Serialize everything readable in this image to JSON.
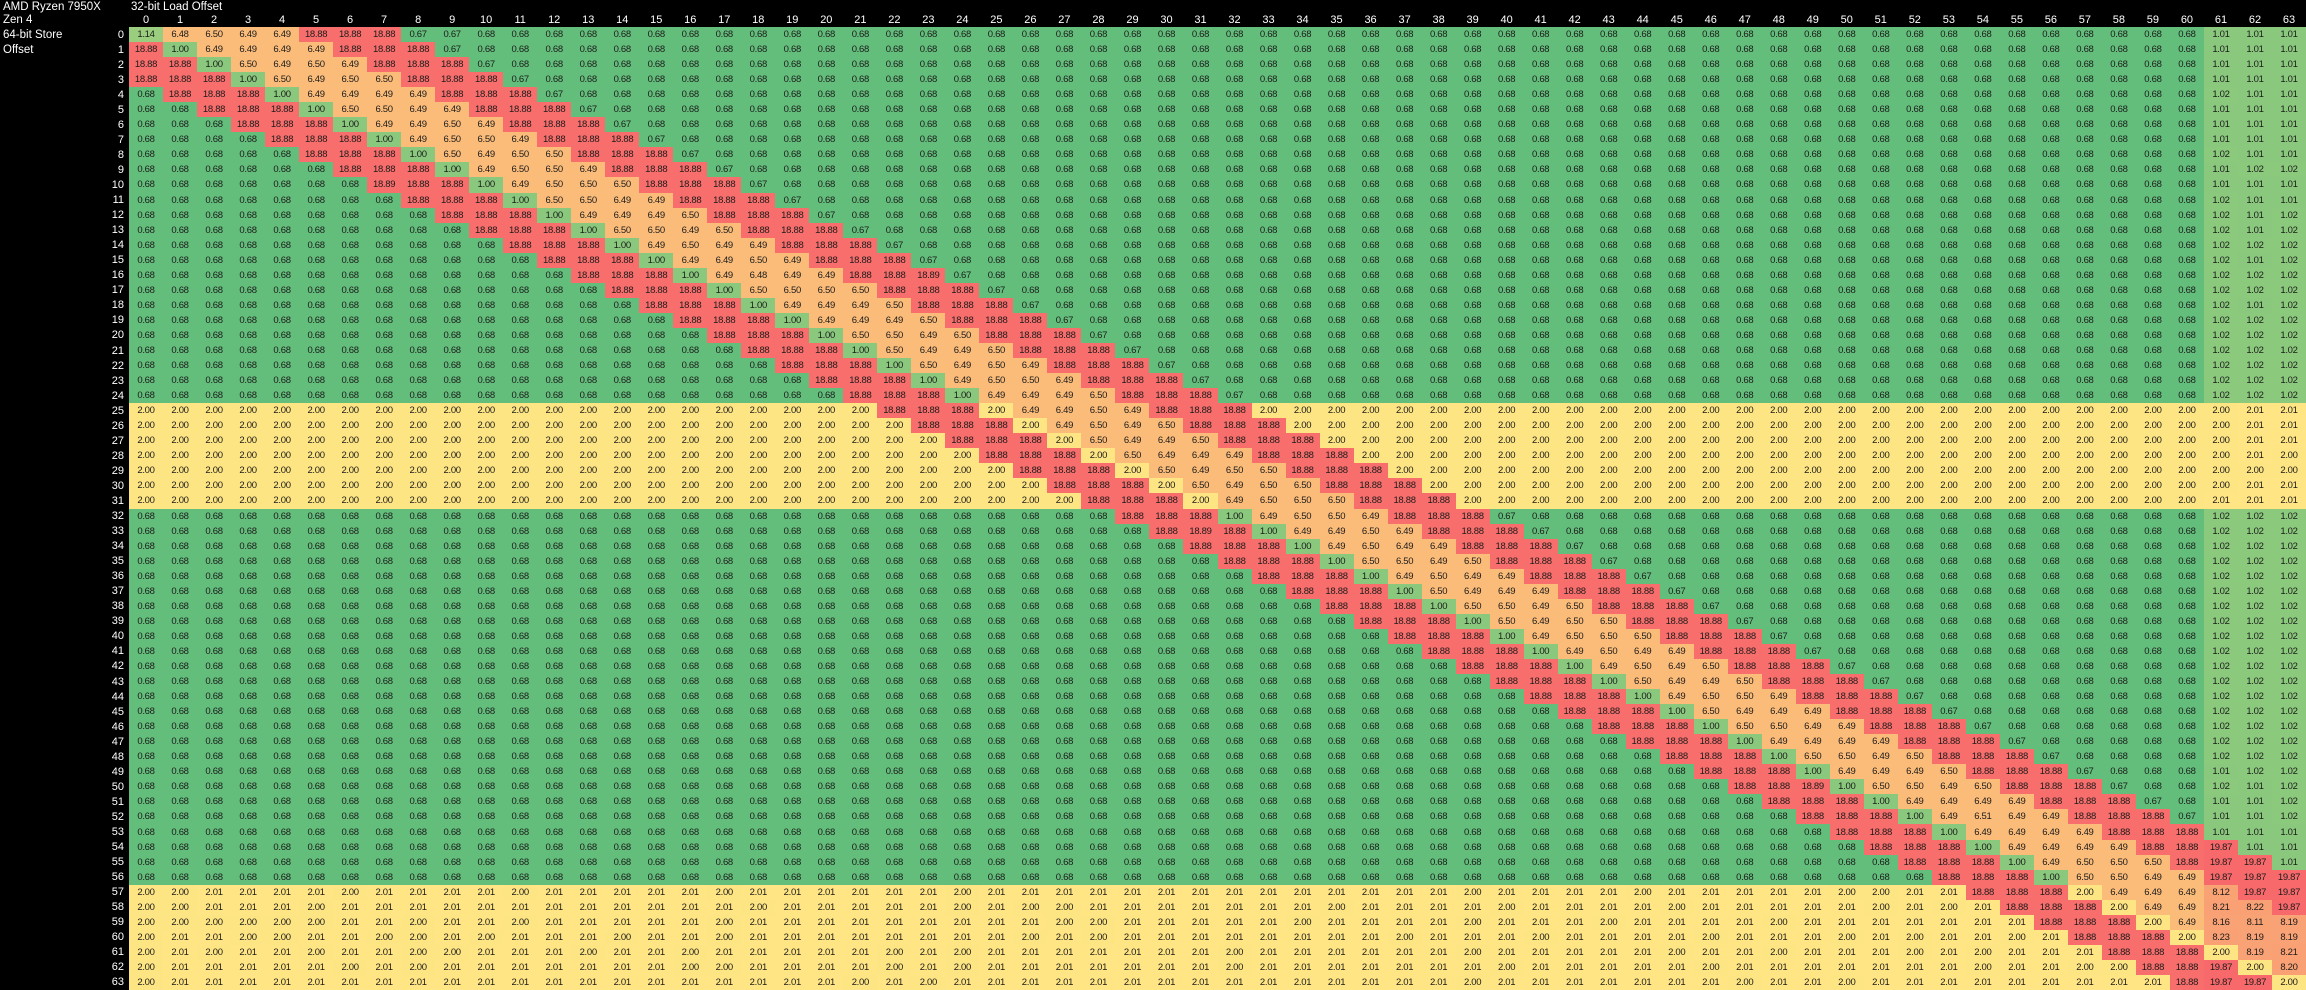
{
  "labels": {
    "cpu": "AMD Ryzen 7950X",
    "arch": "Zen 4",
    "row_axis_line1": "64-bit Store",
    "row_axis_line2": "Offset",
    "col_axis": "32-bit Load Offset"
  },
  "chart_data": {
    "type": "heatmap",
    "xlabel": "32-bit Load Offset",
    "ylabel": "64-bit Store Offset",
    "grid": false,
    "legend_position": "none",
    "page_background": "#000000",
    "header_text_color": "#ffffff",
    "cell_text_color": "#1b1b1b",
    "color_scale_anchors": [
      [
        0.67,
        "#63BE7B"
      ],
      [
        1.02,
        "#8BC97D"
      ],
      [
        1.14,
        "#9ACE7E"
      ],
      [
        2.01,
        "#FFE583"
      ],
      [
        6.51,
        "#FBBC7A"
      ],
      [
        8.23,
        "#F9A175"
      ],
      [
        19.87,
        "#F8696B"
      ]
    ],
    "col_headers": [
      0,
      1,
      2,
      3,
      4,
      5,
      6,
      7,
      8,
      9,
      10,
      11,
      12,
      13,
      14,
      15,
      16,
      17,
      18,
      19,
      20,
      21,
      22,
      23,
      24,
      25,
      26,
      27,
      28,
      29,
      30,
      31,
      32,
      33,
      34,
      35,
      36,
      37,
      38,
      39,
      40,
      41,
      42,
      43,
      44,
      45,
      46,
      47,
      48,
      49,
      50,
      51,
      52,
      53,
      54,
      55,
      56,
      57,
      58,
      59,
      60,
      61,
      62,
      63
    ],
    "row_headers": [
      0,
      1,
      2,
      3,
      4,
      5,
      6,
      7,
      8,
      9,
      10,
      11,
      12,
      13,
      14,
      15,
      16,
      17,
      18,
      19,
      20,
      21,
      22,
      23,
      24,
      25,
      26,
      27,
      28,
      29,
      30,
      31,
      32,
      33,
      34,
      35,
      36,
      37,
      38,
      39,
      40,
      41,
      42,
      43,
      44,
      45,
      46,
      47,
      48,
      49,
      50,
      51,
      52,
      53,
      54,
      55,
      56,
      57,
      58,
      59,
      60,
      61,
      62,
      63
    ],
    "rows_rle": [
      "1.14 6.48 6.50 6.49 6.49 18.88*3 0.67*2 0.68*51 1.01*3",
      "18.88 1.00 6.49*4 18.88*3 0.67 0.68*51 1.01*3",
      "18.88*2 1.00 6.50 6.49 6.50 6.49 18.88*3 0.67 0.68*50 1.01*3",
      "18.88*3 1.00 6.50 6.49 6.50 6.50 18.88*3 0.67 0.68*49 1.01*3",
      "0.68 18.88*3 1.00 6.49*4 18.88*3 0.67 0.68*48 1.02 1.01*2",
      "0.68*2 18.88*3 1.00 6.50*2 6.49*2 18.88*3 0.67 0.68*47 1.01*3",
      "0.68*3 18.88*3 1.00 6.49 6.49 6.50 6.49 18.88*3 0.67 0.68*46 1.01*3",
      "0.68*4 18.88*3 1.00 6.49 6.50 6.50 6.49 18.88*3 0.67 0.68*45 1.01*3",
      "0.68*5 18.88*3 1.00 6.50 6.49 6.50 6.50 18.88*3 0.67 0.68*44 1.02 1.01*2",
      "0.68*6 18.88*3 1.00 6.49 6.50 6.50 6.49 18.88*3 0.67 0.68*43 1.01 1.02*2",
      "0.68*7 18.89 18.88*2 1.00 6.49 6.50*3 18.88*3 0.67 0.68*42 1.01*3",
      "0.68*8 18.88*3 1.00 6.50*2 6.49*2 18.88*3 0.67 0.68*41 1.02 1.01*2",
      "0.68*9 18.88*3 1.00 6.49*3 6.50 18.88*3 0.67 0.68*40 1.02 1.01 1.02",
      "0.68*10 18.88*3 1.00 6.50*2 6.49 6.50 18.88*3 0.67 0.68*39 1.02 1.01 1.02",
      "0.68*11 18.88*3 1.00 6.49 6.50 6.49*2 18.88*3 0.67 0.68*38 1.02*3",
      "0.68*12 18.88*3 1.00 6.49*2 6.50 6.49 18.88*3 0.67 0.68*37 1.02 1.01 1.02",
      "0.68*13 18.88*3 1.00 6.49 6.48 6.49*2 18.88*2 18.89 0.67 0.68*36 1.02*3",
      "0.68*14 18.88*3 1.00 6.50*4 18.88*3 0.67 0.68*35 1.02*3",
      "0.68*15 18.88*3 1.00 6.49*3 6.50 18.88*3 0.67 0.68*34 1.02 1.01 1.02",
      "0.68*16 18.88*3 1.00 6.49*3 6.50 18.88*3 0.67 0.68*33 1.02*3",
      "0.68*17 18.88*3 1.00 6.50*2 6.49 6.50 18.88*3 0.67 0.68*32 1.02*3",
      "0.68*18 18.88*3 1.00 6.50 6.49*2 6.50 18.88*3 0.67 0.68*31 1.02*3",
      "0.68*19 18.88*3 1.00 6.50 6.49 6.50 6.49 18.88*3 0.67 0.68*30 1.02*3",
      "0.68*20 18.88*3 1.00 6.49 6.50*2 6.49 18.88*3 0.67 0.68*29 1.02*3",
      "0.68*21 18.88*3 1.00 6.49*3 6.50 18.88*3 0.67 0.68*28 1.02*3",
      "2.00*22 18.88*3 2.00 6.49*2 6.50 6.49 18.88*3 2.00*29 2.01*2",
      "2.00*23 18.88*3 2.00 6.49 6.50 6.49 6.50 18.88*3 2.00*28 2.01*2",
      "2.00*24 18.88*3 2.00 6.50 6.49*2 6.50 18.88*3 2.00*27 2.01*2",
      "2.00*25 18.88*3 2.00 6.50 6.49*3 18.88*3 2.00*26 2.01 2.00",
      "2.00*26 18.88*3 2.00 6.50 6.49 6.50*2 18.88*3 2.00*27",
      "2.00*27 18.88*3 2.00 6.50 6.49 6.50*2 18.88*3 2.00*24 2.01*2",
      "2.00*28 18.88*3 2.00 6.49 6.50*3 18.88*3 2.00*22 2.01*3",
      "0.68*29 18.88*3 1.00 6.49 6.50*2 6.49 18.88*3 0.67 0.68*20 1.02*3",
      "0.68*30 18.88 18.89 18.88 1.00 6.49*2 6.50 6.49 18.88*3 0.67 0.68*19 1.02*3",
      "0.68*31 18.88*3 1.00 6.49 6.50 6.49*2 18.88*3 0.67 0.68*18 1.02*3",
      "0.68*32 18.88*3 1.00 6.50*2 6.49 6.50 18.88*3 0.67 0.68*17 1.02*3",
      "0.68*33 18.88*3 1.00 6.49 6.50 6.49*2 18.88*3 0.67 0.68*16 1.02*3",
      "0.68*34 18.88*3 1.00 6.50 6.49*3 18.88*3 0.67 0.68*15 1.02*3",
      "0.68*35 18.88*3 1.00 6.50*2 6.49 6.50 18.88*3 0.67 0.68*14 1.02*3",
      "0.68*36 18.88*3 1.00 6.50 6.49 6.50*2 18.88*3 0.67 0.68*13 1.02*3",
      "0.68*37 18.88*3 1.00 6.49 6.50*3 18.88*3 0.67 0.68*12 1.02*3",
      "0.68*38 18.88*3 1.00 6.49 6.50 6.49*2 18.88*3 0.67 0.68*11 1.02*3",
      "0.68*39 18.88*3 1.00 6.49 6.50 6.49 6.50 18.88*3 0.67 0.68*10 1.02*3",
      "0.68*40 18.88*3 1.00 6.50 6.49*2 6.50 18.88*3 0.67 0.68*9 1.02*3",
      "0.68*41 18.88*3 1.00 6.49 6.50*2 6.49 18.88*3 0.67 0.68*8 1.02*3",
      "0.68*42 18.88*3 1.00 6.50 6.49*3 18.88*3 0.67 0.68*7 1.02*3",
      "0.68*43 18.88*3 1.00 6.50*2 6.49*2 18.88*3 0.67 0.68*6 1.02*3",
      "0.68*44 18.88*3 1.00 6.49*4 18.88*3 0.67 0.68*5 1.02*3",
      "0.68*45 18.88*3 1.00 6.50*2 6.49 6.50 18.88*3 0.67 0.68*4 1.02*3",
      "0.68*46 18.88*3 1.00 6.49*3 6.50 18.88*3 0.67 0.68*3 1.01 1.02*2",
      "0.68*47 18.88*2 18.89 1.00 6.50*2 6.49 6.50 18.88*3 0.67 0.68*2 1.02 1.01 1.02",
      "0.68*48 18.88*3 1.00 6.49*4 18.88*3 0.67 0.68 1.01*2 1.02",
      "0.68*49 18.88*3 1.00 6.49 6.51 6.49*2 18.88*3 0.67 1.01*2 1.02",
      "0.68*50 18.88*3 1.00 6.49*4 18.88*3 1.01*3",
      "0.68*51 18.88*3 1.00 6.49*4 18.88*2 19.87 1.01*2",
      "0.68*52 18.88*3 1.00 6.49 6.50*3 18.88 19.87*2 1.01",
      "0.68*53 18.88*3 1.00 6.50*2 6.49*2 19.87*3",
      "2.00*2 2.01*4 2.00 2.01*4 2.00 2.01*5 2.00 2.01*6 2.00 2.01*14 2.00 2.01*4 2.00 2.01*5 2.00*2 2.01*2 18.88*3 2.00 6.49*3 8.12 19.87*2",
      "2.00*2 2.01*3 2.00 2.01*12 2.00 2.01*5 2.00 2.01 2.00*2 2.01*7 2.00 2.01*4 2.00 2.01*4 2.00 2.01*5 2.00 2.01 2.00 2.01 18.88*3 2.00 6.49*2 8.21 8.22 19.87",
      "2.00*6 2.01*2 2.00 2.01*2 2.00 2.01*5 2.00 2.01*9 2.00*2 2.01*5 2.00 2.01*4 2.00 2.01*3 2.00 2.01*4 2.00 2.01*7 18.88*3 2.00 6.49 8.16 8.11 8.19",
      "2.00 2.01*2 2.00*2 2.01*2 2.00*2 2.01 2.00 2.01*3 2.00 2.01*2 2.00 2.01*8 2.00 2.01 2.00 2.01*8 2.00 2.01*3 2.00 2.01*4 2.00 2.01*3 2.00 2.01 2.00 2.01*2 2.00 2.01 18.88*3 2.00 8.23 8.19*2",
      "2.00 2.01 2.00 2.01*2 2.00 2.01*2 2.00*2 2.01*3 2.00 2.01*2 2.00 2.01*5 2.00 2.01 2.00 2.01*7 2.00 2.01*6 2.00 2.01*5 2.00 2.01*2 2.00 2.01*3 2.00 2.01 2.00 2.01*3 18.88*3 2.00 8.19 8.21",
      "2.00 2.01*5 2.00 2.01 2.00 2.01*7 2.00*2 2.01*4 2.00 2.01 2.00 2.01*7 2.00 2.01*7 2.00 2.01*5 2.00 2.01*7 2.00 2.01*2 2.00*2 18.88*2 19.87 2.00 8.20",
      "2.00 2.01*20 2.00 2.01 2.00 2.01*15 2.00 2.01*7 2.00 2.01*2 2.00 2.01*9 18.88 19.87*2 2.00"
    ]
  }
}
